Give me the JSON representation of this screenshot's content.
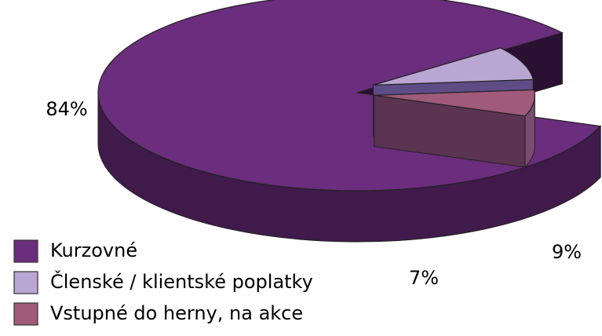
{
  "chart_data": {
    "type": "pie",
    "categories": [
      "Kurzovné",
      "Členské / klientské poplatky",
      "Vstupné do herny, na akce"
    ],
    "values": [
      84,
      9,
      7
    ],
    "value_labels": [
      "84%",
      "9%",
      "7%"
    ],
    "colors": [
      "#6b2d7d",
      "#b9a6d2",
      "#a05a7a"
    ]
  }
}
